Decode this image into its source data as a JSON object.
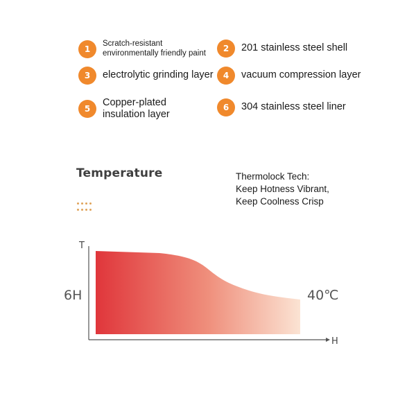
{
  "layers": [
    {
      "number": "1",
      "label": "Scratch-resistant\nenvironmentally friendly paint"
    },
    {
      "number": "2",
      "label": "201 stainless steel shell"
    },
    {
      "number": "3",
      "label": "electrolytic grinding layer"
    },
    {
      "number": "4",
      "label": "vacuum compression layer"
    },
    {
      "number": "5",
      "label": "Copper-plated\ninsulation layer"
    },
    {
      "number": "6",
      "label": "304 stainless steel liner"
    }
  ],
  "temperature_section": {
    "title": "Temperature",
    "tagline": [
      "Thermolock Tech:",
      "Keep Hotness Vibrant,",
      "Keep Coolness Crisp"
    ]
  },
  "colors": {
    "badge": "#f0892c",
    "curve_start": "#e0363b",
    "curve_end": "#fbe3d3"
  },
  "chart_data": {
    "type": "area",
    "y_axis_label": "T",
    "x_axis_label": "H",
    "left_label": "6H",
    "right_label": "40℃"
  }
}
